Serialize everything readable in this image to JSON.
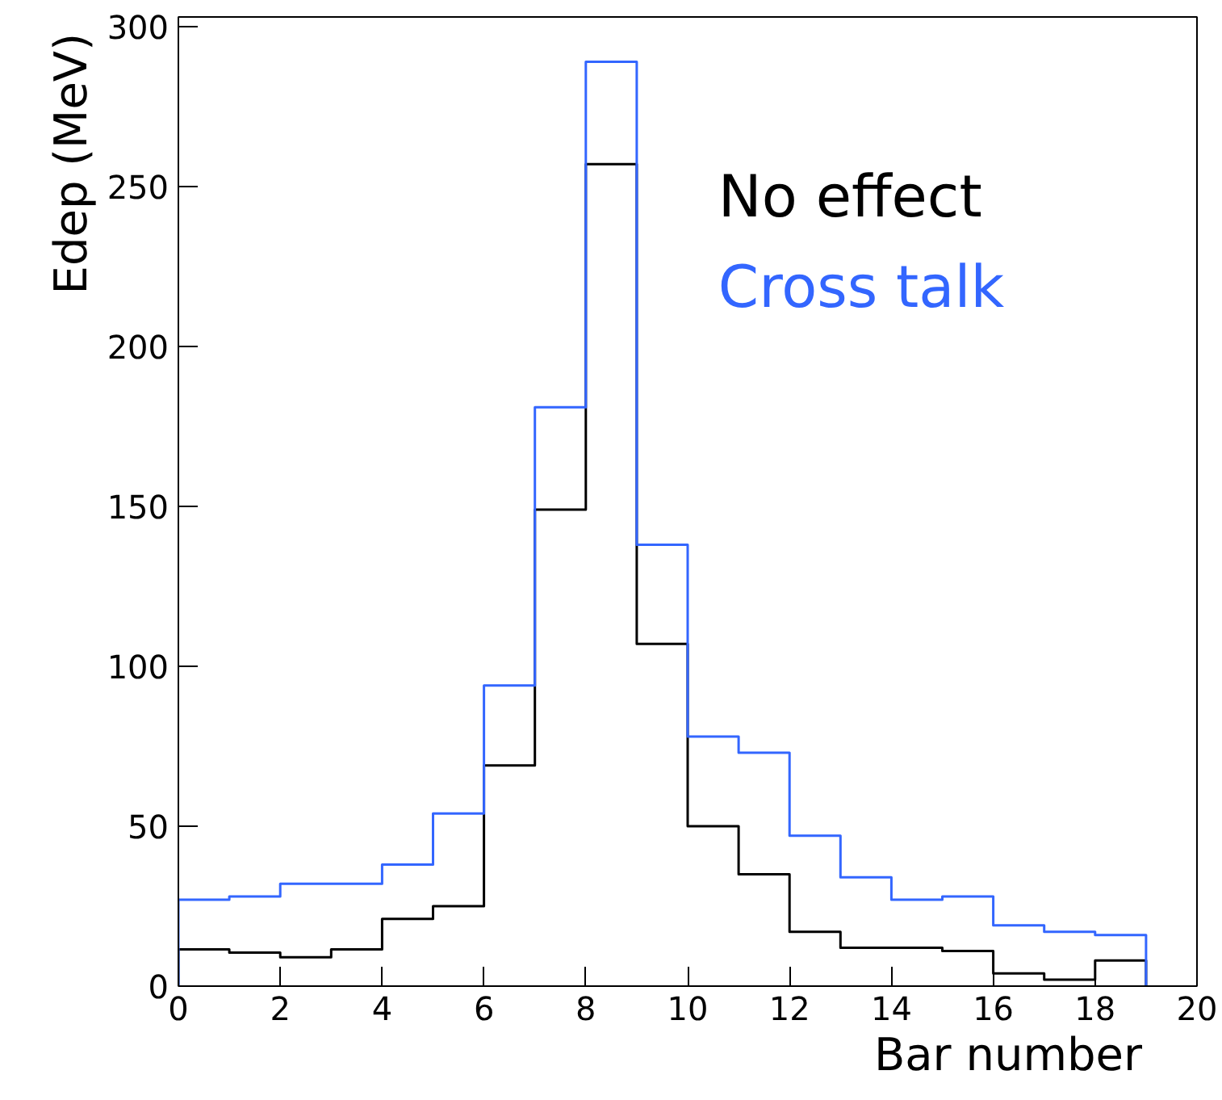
{
  "chart_data": {
    "type": "histogram",
    "xlabel": "Bar number",
    "ylabel": "Edep (MeV)",
    "bins": [
      0,
      1,
      2,
      3,
      4,
      5,
      6,
      7,
      8,
      9,
      10,
      11,
      12,
      13,
      14,
      15,
      16,
      17,
      18,
      19
    ],
    "series": [
      {
        "name": "No effect",
        "color": "#000000",
        "values": [
          11.5,
          10.5,
          9,
          11.5,
          21,
          25,
          69,
          149,
          257,
          107,
          50,
          35,
          17,
          12,
          12,
          11,
          4,
          2,
          8
        ]
      },
      {
        "name": "Cross talk",
        "color": "#3366ff",
        "values": [
          27,
          28,
          32,
          32,
          38,
          54,
          94,
          181,
          289,
          138,
          78,
          73,
          47,
          34,
          27,
          28,
          19,
          17,
          16
        ]
      }
    ],
    "xlim": [
      0,
      20
    ],
    "ylim": [
      0,
      303
    ],
    "xticks": [
      0,
      2,
      4,
      6,
      8,
      10,
      12,
      14,
      16,
      18,
      20
    ],
    "yticks": [
      0,
      50,
      100,
      150,
      200,
      250,
      300
    ],
    "grid": false,
    "legend": "top right"
  }
}
